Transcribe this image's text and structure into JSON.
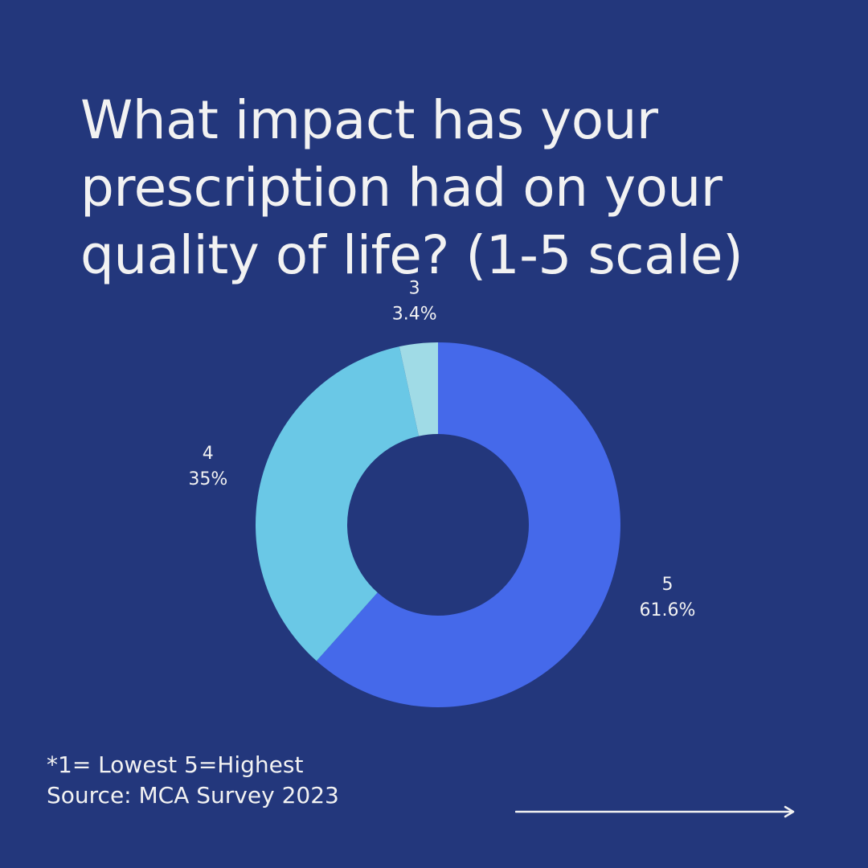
{
  "title": "What impact has your prescription had on your quality of life? (1-5 scale)",
  "chart_data": {
    "type": "pie",
    "donut": true,
    "title": "What impact has your prescription had on your quality of life? (1-5 scale)",
    "slices": [
      {
        "label": "5",
        "value": 61.6,
        "display": "61.6%",
        "color": "#4569ea"
      },
      {
        "label": "4",
        "value": 35,
        "display": "35%",
        "color": "#6ac8e6"
      },
      {
        "label": "3",
        "value": 3.4,
        "display": "3.4%",
        "color": "#a0dbe6"
      }
    ],
    "start": "top",
    "direction": "clockwise"
  },
  "footnote": {
    "scale_note": "*1= Lowest 5=Highest",
    "source": "Source: MCA Survey 2023"
  },
  "colors": {
    "background": "#23377c",
    "text": "#f2f2f2"
  },
  "icons": {
    "next": "arrow-right-icon"
  }
}
